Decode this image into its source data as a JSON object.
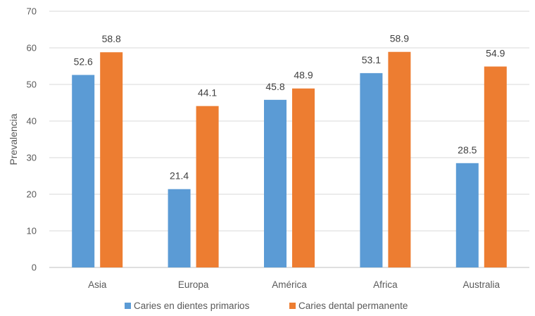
{
  "chart_data": {
    "type": "bar",
    "title": "",
    "xlabel": "",
    "ylabel": "Prevalencia",
    "ylim": [
      0,
      70
    ],
    "yticks": [
      0,
      10,
      20,
      30,
      40,
      50,
      60,
      70
    ],
    "grid": true,
    "legend_position": "bottom",
    "categories": [
      "Asia",
      "Europa",
      "América",
      "Africa",
      "Australia"
    ],
    "series": [
      {
        "name": "Caries en dientes primarios",
        "color": "#5B9BD5",
        "values": [
          52.6,
          21.4,
          45.8,
          53.1,
          28.5
        ]
      },
      {
        "name": "Caries dental permanente",
        "color": "#ED7D31",
        "values": [
          58.8,
          44.1,
          48.9,
          58.9,
          54.9
        ]
      }
    ]
  }
}
